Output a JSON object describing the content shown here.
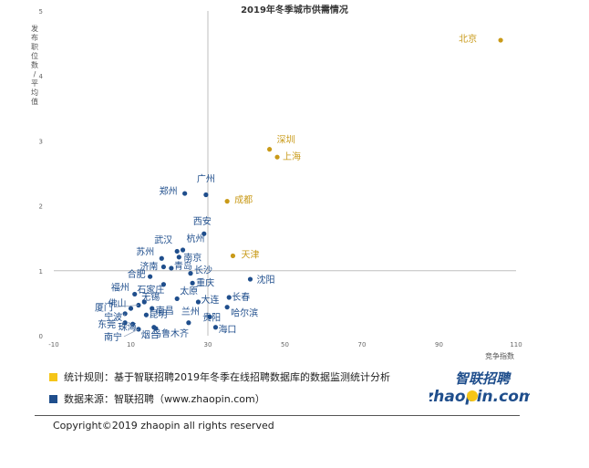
{
  "chart_data": {
    "type": "scatter",
    "title": "2019年冬季城市供需情况",
    "xlabel": "竞争指数",
    "ylabel": "发布职位数/平均值",
    "xlim": [
      -10,
      110
    ],
    "ylim": [
      0,
      5
    ],
    "xticks": [
      -10,
      10,
      30,
      50,
      70,
      90,
      110
    ],
    "yticks": [
      0,
      1,
      2,
      3,
      4,
      5
    ],
    "quadrant_lines": {
      "x": 30,
      "y": 1
    },
    "grid": false,
    "colors": {
      "highlight": "#c99a18",
      "normal": "#1f4e8c"
    },
    "points": [
      {
        "name": "北京",
        "x": 106,
        "y": 4.55,
        "group": "highlight"
      },
      {
        "name": "深圳",
        "x": 46,
        "y": 2.87,
        "group": "highlight"
      },
      {
        "name": "上海",
        "x": 48,
        "y": 2.75,
        "group": "highlight"
      },
      {
        "name": "成都",
        "x": 35,
        "y": 2.07,
        "group": "highlight"
      },
      {
        "name": "天津",
        "x": 36.5,
        "y": 1.23,
        "group": "highlight"
      },
      {
        "name": "广州",
        "x": 29.5,
        "y": 2.17,
        "group": "normal"
      },
      {
        "name": "郑州",
        "x": 24,
        "y": 2.19,
        "group": "normal"
      },
      {
        "name": "西安",
        "x": 29,
        "y": 1.57,
        "group": "normal"
      },
      {
        "name": "武汉",
        "x": 22,
        "y": 1.3,
        "group": "normal"
      },
      {
        "name": "杭州",
        "x": 23.5,
        "y": 1.32,
        "group": "normal"
      },
      {
        "name": "苏州",
        "x": 18,
        "y": 1.19,
        "group": "normal"
      },
      {
        "name": "南京",
        "x": 22.5,
        "y": 1.21,
        "group": "normal"
      },
      {
        "name": "济南",
        "x": 18.5,
        "y": 1.06,
        "group": "normal"
      },
      {
        "name": "青岛",
        "x": 20.5,
        "y": 1.04,
        "group": "normal"
      },
      {
        "name": "合肥",
        "x": 15,
        "y": 0.91,
        "group": "normal"
      },
      {
        "name": "长沙",
        "x": 25.5,
        "y": 0.96,
        "group": "normal"
      },
      {
        "name": "重庆",
        "x": 26,
        "y": 0.81,
        "group": "normal"
      },
      {
        "name": "沈阳",
        "x": 41,
        "y": 0.87,
        "group": "normal"
      },
      {
        "name": "石家庄",
        "x": 18.5,
        "y": 0.79,
        "group": "normal"
      },
      {
        "name": "福州",
        "x": 11,
        "y": 0.64,
        "group": "normal"
      },
      {
        "name": "太原",
        "x": 22,
        "y": 0.57,
        "group": "normal"
      },
      {
        "name": "长春",
        "x": 35.5,
        "y": 0.59,
        "group": "normal"
      },
      {
        "name": "无锡",
        "x": 13.5,
        "y": 0.52,
        "group": "normal"
      },
      {
        "name": "大连",
        "x": 27.5,
        "y": 0.52,
        "group": "normal"
      },
      {
        "name": "佛山",
        "x": 10,
        "y": 0.42,
        "group": "normal"
      },
      {
        "name": "厦门",
        "x": 12,
        "y": 0.47,
        "group": "normal"
      },
      {
        "name": "南昌",
        "x": 15.5,
        "y": 0.42,
        "group": "normal"
      },
      {
        "name": "宁波",
        "x": 8.5,
        "y": 0.34,
        "group": "normal"
      },
      {
        "name": "哈尔滨",
        "x": 35,
        "y": 0.44,
        "group": "normal"
      },
      {
        "name": "昆明",
        "x": 14,
        "y": 0.32,
        "group": "normal"
      },
      {
        "name": "东莞",
        "x": 8.5,
        "y": 0.2,
        "group": "normal"
      },
      {
        "name": "珠海",
        "x": 10.5,
        "y": 0.18,
        "group": "normal"
      },
      {
        "name": "兰州",
        "x": 25,
        "y": 0.2,
        "group": "normal"
      },
      {
        "name": "贵阳",
        "x": 30.5,
        "y": 0.29,
        "group": "normal"
      },
      {
        "name": "南宁",
        "x": 12,
        "y": 0.1,
        "group": "normal"
      },
      {
        "name": "烟台",
        "x": 16,
        "y": 0.13,
        "group": "normal"
      },
      {
        "name": "乌鲁木齐",
        "x": 16.5,
        "y": 0.11,
        "group": "normal"
      },
      {
        "name": "海口",
        "x": 32,
        "y": 0.13,
        "group": "normal"
      }
    ]
  },
  "footnotes": {
    "rule": "统计规则：基于智联招聘2019年冬季在线招聘数据库的数据监测统计分析",
    "source": "数据来源：智联招聘（www.zhaopin.com）",
    "rule_color": "#f5c518",
    "source_color": "#1f4e8c"
  },
  "logo": {
    "cn": "智联招聘",
    "en": "zhaopin.com"
  },
  "copyright": "Copyright©2019 zhaopin all rights reserved"
}
